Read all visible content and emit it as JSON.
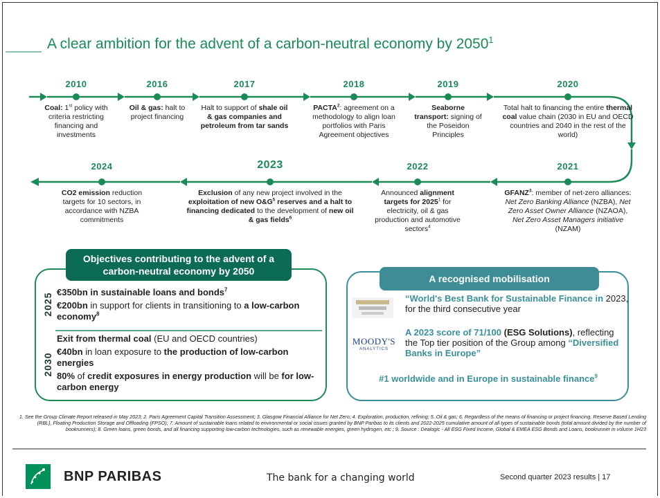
{
  "title": [
    {
      "text": "A clear ambition for the advent of a carbon-neutral economy by 2050"
    },
    {
      "text": "1",
      "sup": true
    }
  ],
  "timeline": [
    {
      "year": "2010",
      "runs": [
        {
          "text": "Coal:",
          "bold": true
        },
        {
          "text": " 1"
        },
        {
          "text": "st",
          "sup": true
        },
        {
          "text": " policy with criteria restricting financing and investments"
        }
      ]
    },
    {
      "year": "2016",
      "runs": [
        {
          "text": "Oil & gas:",
          "bold": true
        },
        {
          "text": " halt to project financing"
        }
      ]
    },
    {
      "year": "2017",
      "runs": [
        {
          "text": "Halt to support of "
        },
        {
          "text": "shale oil & gas companies and petroleum from tar sands",
          "bold": true
        }
      ]
    },
    {
      "year": "2018",
      "runs": [
        {
          "text": "PACTA",
          "bold": true
        },
        {
          "text": "2",
          "bold": true,
          "sup": true
        },
        {
          "text": ": agreement on a methodology to align loan portfolios with Paris Agreement objectives"
        }
      ]
    },
    {
      "year": "2019",
      "runs": [
        {
          "text": "Seaborne transport:",
          "bold": true
        },
        {
          "text": " signing of the Poseidon Principles"
        }
      ]
    },
    {
      "year": "2020",
      "runs": [
        {
          "text": "Total halt to financing the entire "
        },
        {
          "text": "thermal coal",
          "bold": true
        },
        {
          "text": " value chain (2030 in EU and OECD countries and 2040 in the rest of the world)"
        }
      ]
    },
    {
      "year": "2024",
      "runs": [
        {
          "text": "CO2 emission",
          "bold": true
        },
        {
          "text": " reduction targets for 10 sectors, in accordance with NZBA commitments"
        }
      ]
    },
    {
      "year": "2023",
      "runs": [
        {
          "text": "Exclusion",
          "bold": true
        },
        {
          "text": " of any new project involved in the "
        },
        {
          "text": "exploitation of new O&G",
          "bold": true
        },
        {
          "text": "5",
          "bold": true,
          "sup": true
        },
        {
          "text": " reserves and a halt to financing dedicated",
          "bold": true
        },
        {
          "text": " to the development of "
        },
        {
          "text": "new oil & gas fields",
          "bold": true
        },
        {
          "text": "6",
          "bold": true,
          "sup": true
        }
      ]
    },
    {
      "year": "2022",
      "runs": [
        {
          "text": "Announced "
        },
        {
          "text": "alignment targets for 2025",
          "bold": true
        },
        {
          "text": "1",
          "sup": true
        },
        {
          "text": " for electricity, oil & gas production and automotive sectors"
        },
        {
          "text": "4",
          "sup": true
        }
      ]
    },
    {
      "year": "2021",
      "runs": [
        {
          "text": "GFANZ",
          "bold": true
        },
        {
          "text": "3",
          "bold": true,
          "sup": true
        },
        {
          "text": ": member of net-zero alliances: "
        },
        {
          "text": "Net Zero Banking Alliance",
          "italic": true
        },
        {
          "text": " (NZBA), "
        },
        {
          "text": "Net Zero Asset Owner Alliance",
          "italic": true
        },
        {
          "text": " (NZAOA), "
        },
        {
          "text": "Net Zero Asset Managers initiative",
          "italic": true
        },
        {
          "text": " (NZAM)"
        }
      ]
    }
  ],
  "objectives": {
    "heading": "Objectives contributing to the advent of a carbon-neutral economy by 2050",
    "groups": [
      {
        "year": "2025",
        "items": [
          [
            {
              "text": "€350bn in sustainable loans and bonds",
              "bold": true
            },
            {
              "text": "7",
              "bold": true,
              "sup": true
            }
          ],
          [
            {
              "text": "€200bn",
              "bold": true
            },
            {
              "text": " in support for clients in transitioning to "
            },
            {
              "text": "a low-carbon economy",
              "bold": true
            },
            {
              "text": "8",
              "bold": true,
              "sup": true
            }
          ]
        ]
      },
      {
        "year": "2030",
        "items": [
          [
            {
              "text": "Exit from thermal coal",
              "bold": true
            },
            {
              "text": " (EU and OECD countries)"
            }
          ],
          [
            {
              "text": "€40bn",
              "bold": true
            },
            {
              "text": " in loan exposure to "
            },
            {
              "text": "the production of low-carbon energies",
              "bold": true
            }
          ],
          [
            {
              "text": "80%",
              "bold": true
            },
            {
              "text": " of "
            },
            {
              "text": "credit exposures in energy production",
              "bold": true
            },
            {
              "text": " will be "
            },
            {
              "text": "for low-carbon energy",
              "bold": true
            }
          ]
        ]
      }
    ]
  },
  "mobilisation": {
    "heading": "A recognised mobilisation",
    "items": [
      [
        {
          "text": "“World's Best Bank for Sustainable Finance in",
          "highlight": true
        },
        {
          "text": " 2023, for the third consecutive year"
        }
      ],
      [
        {
          "text": "A 2023 score of 71/100",
          "highlight": true
        },
        {
          "text": " (ESG Solutions)",
          "bold": true
        },
        {
          "text": ", reflecting the Top tier position of the Group among "
        },
        {
          "text": "“Diversified Banks in Europe”",
          "highlight": true
        }
      ],
      [
        {
          "text": "#1 worldwide and in Europe in sustainable finance",
          "highlight": true
        },
        {
          "text": "9",
          "highlight": true,
          "sup": true
        }
      ]
    ],
    "logo": {
      "name": "MOODY'S",
      "sub": "ANALYTICS"
    }
  },
  "footnotes": "1. See the Group Climate Report released in May 2023; 2. Paris Agreement Capital Transition Assessment; 3. Glasgow Financial Alliance for Net Zero; 4. Exploration, production, refining; 5. Oil & gas; 6. Regardless of the means of financing or project financing, Reserve Based Lending (RBL), Floating Production Storage and Offloading (FPSO); 7. Amount of sustainable loans related to environmental or social issues granted by BNP Paribas to its clients and 2022-2025 cumulative amount of all types of sustainable bonds (total amount divided by the number of bookrunners); 8. Green loans, green bonds, and all financing supporting low-carbon technologies, such as renewable energies, green hydrogen, etc ; 9. Source : Dealogic - All ESG Fixed Income, Global & EMEA ESG Bonds and Loans, bookrunner in volume 1H23",
  "footer": {
    "brand": "BNP PARIBAS",
    "tagline": "The bank for a changing world",
    "page": "Second quarter 2023 results | 17"
  }
}
